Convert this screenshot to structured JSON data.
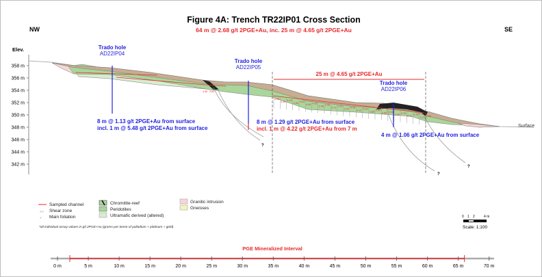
{
  "title": "Figure 4A: Trench TR22IP01 Cross Section",
  "subtitle": "64 m @ 2.68 g/t 2PGE+Au, inc. 25 m @ 4.65 g/t 2PGE+Au",
  "directions": {
    "left": "NW",
    "right": "SE"
  },
  "elev_label": "Elev.",
  "elev_ticks": [
    "358 m",
    "356 m",
    "354 m",
    "352 m",
    "350 m",
    "348 m",
    "346 m",
    "344 m",
    "342 m"
  ],
  "surface_label": "Surface",
  "interval_label": "25 m @ 4.65 g/t 2PGE+Au",
  "holes": [
    {
      "title": "Trado hole",
      "id": "AD22IP04",
      "result1": "8 m @ 1.13 g/t 2PGE+Au from surface",
      "result2": "incl. 1 m @ 5.48 g/t 2PGE+Au from surface"
    },
    {
      "title": "Trado hole",
      "id": "AD22IP05",
      "result1": "8 m @ 1.29 g/t 2PGE+Au from surface",
      "result2": "incl. 1 m @ 4.22 g/t 2PGE+Au from 7 m"
    },
    {
      "title": "Trado hole",
      "id": "AD22IP06",
      "result1": "4 m @ 1.06 g/t 2PGE+Au from surface"
    }
  ],
  "assays": [
    "3.06",
    "3.96",
    "4.33",
    "4.30",
    "4.24",
    "4.06",
    "4.25",
    "2.45",
    "2.58",
    "2.71",
    "2.23",
    "2.22",
    "4.26",
    "4.12",
    "4.02",
    "2.65",
    "2.44",
    "2.86",
    "5.34",
    "2.26",
    "4.70",
    "2.41",
    "5.76",
    "3.71",
    "2.84"
  ],
  "assays_left": [
    "4.36",
    "3.84"
  ],
  "unknown_mark": "?",
  "legend": {
    "col1": [
      "Sampled channel",
      "Shear zone",
      "Main foliation"
    ],
    "col2": [
      "Chromitite-reef",
      "Peridotites",
      "Ultramafic derived (altered)"
    ],
    "col3": [
      "Granitic intrusion",
      "Gneisses"
    ]
  },
  "footnote": "*all individual assay values in g/t 2PGE+Au (grams per tonne of palladium + platinum + gold)",
  "scale": {
    "ticks": [
      "0",
      "1",
      "2",
      "4 m"
    ],
    "label": "Scale: 1:100"
  },
  "bottom_axis": {
    "title": "PGE Mineralized Interval",
    "ticks": [
      "0 m",
      "5 m",
      "10 m",
      "15 m",
      "20 m",
      "25 m",
      "30 m",
      "35 m",
      "40 m",
      "45 m",
      "50 m",
      "55 m",
      "60 m",
      "65 m",
      "70 m"
    ],
    "interval_start_m": 2,
    "interval_end_m": 66
  },
  "colors": {
    "overburden": "#c8ad91",
    "peridotite": "#a9d69a",
    "altered": "#d8ecd0",
    "granite": "#f6d6d6",
    "chromitite": "#222222",
    "hole": "#1f1fe0",
    "assay": "#e8282a"
  }
}
